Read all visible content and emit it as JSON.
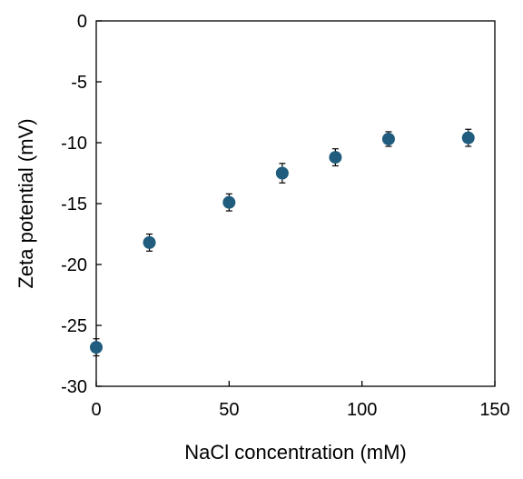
{
  "chart_data": {
    "type": "scatter",
    "title": "",
    "xlabel": "NaCl concentration (mM)",
    "ylabel": "Zeta potential (mV)",
    "xlim": [
      0,
      150
    ],
    "ylim": [
      -30,
      0
    ],
    "xticks": [
      0,
      50,
      100,
      150
    ],
    "yticks": [
      0,
      -5,
      -10,
      -15,
      -20,
      -25,
      -30
    ],
    "grid": false,
    "legend": "none",
    "marker_color": "#1F5C7E",
    "series": [
      {
        "x": [
          0,
          20,
          50,
          70,
          90,
          110,
          140
        ],
        "y": [
          -26.8,
          -18.2,
          -14.9,
          -12.5,
          -11.2,
          -9.7,
          -9.6
        ],
        "yerr": [
          0.7,
          0.7,
          0.7,
          0.8,
          0.7,
          0.6,
          0.7
        ]
      }
    ]
  }
}
